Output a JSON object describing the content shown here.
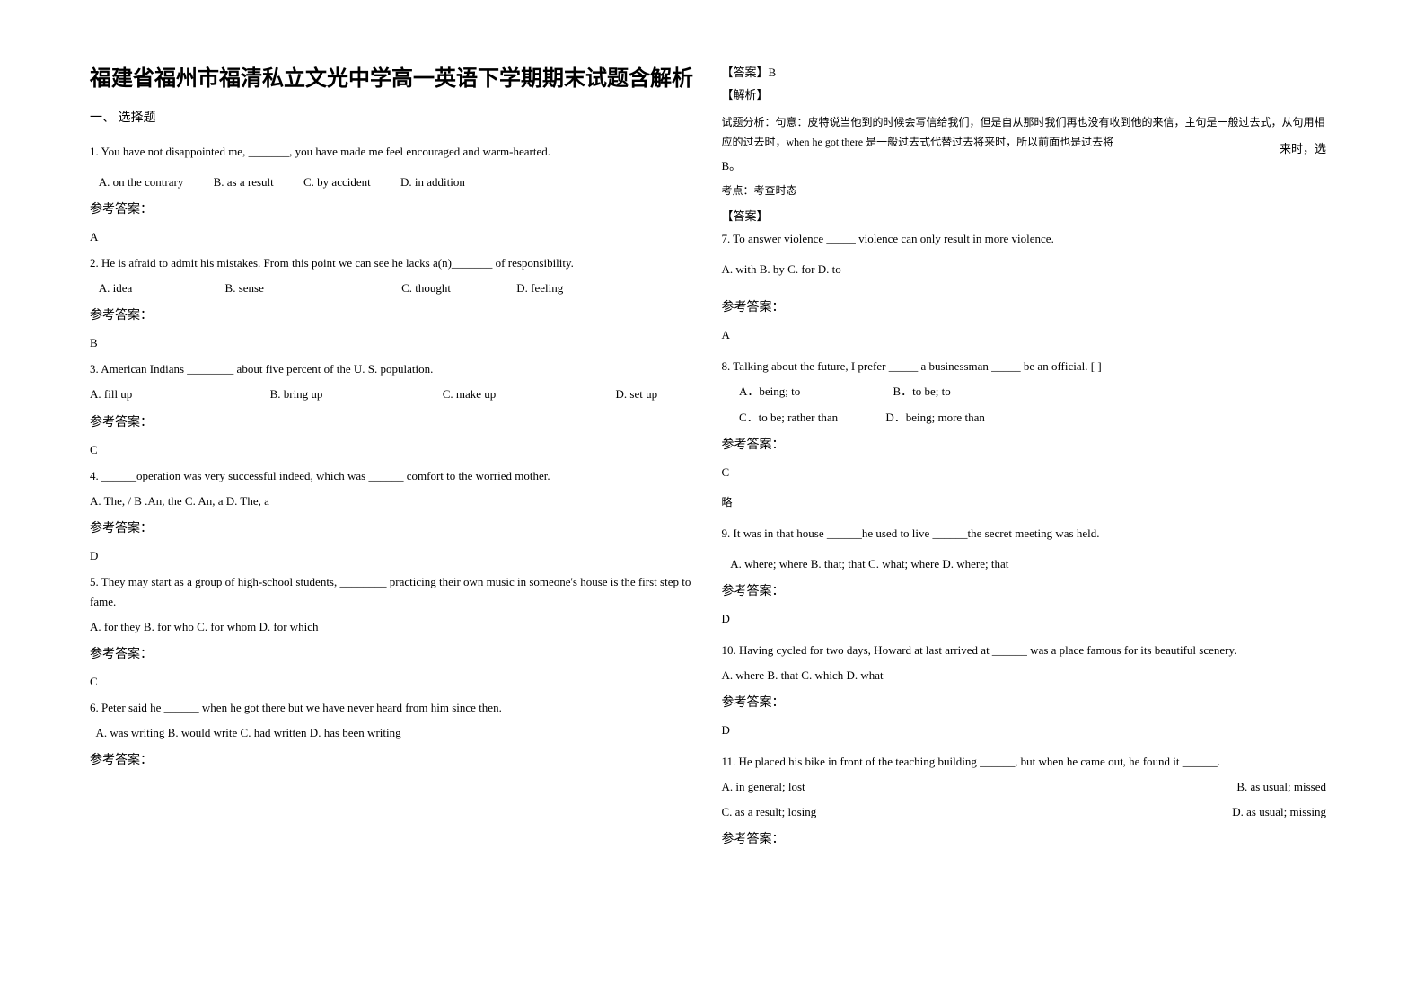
{
  "document": {
    "title": "福建省福州市福清私立文光中学高一英语下学期期末试题含解析",
    "section_header": "一、 选择题",
    "answer_label": "参考答案：",
    "analysis_label_bracket": "【解析】",
    "answer_label_bracket": "【答案】",
    "exam_point_label": "考点：",
    "brief_label": "略",
    "side_note": "来时，选"
  },
  "col1": {
    "q1": {
      "stem": "1. You have not disappointed me, _______, you have made me feel encouraged and warm-hearted.",
      "optA": "A. on the contrary",
      "optB": "B. as a result",
      "optC": "C. by accident",
      "optD": "D. in addition",
      "answer": "A"
    },
    "q2": {
      "stem": "2. He is afraid to admit his mistakes. From this point we can see he lacks a(n)_______ of responsibility.",
      "optA": "A. idea",
      "optB": "B. sense",
      "optC": "C. thought",
      "optD": "D. feeling",
      "answer": "B"
    },
    "q3": {
      "stem": "3. American Indians ________ about five percent of the U. S. population.",
      "optA": "A. fill up",
      "optB": "B. bring up",
      "optC": "C. make up",
      "optD": "D. set up",
      "answer": "C"
    },
    "q4": {
      "stem": "4. ______operation was very successful indeed, which was ______ comfort to the worried mother.",
      "options": "A. The, /    B .An, the    C. An, a     D. The, a",
      "answer": "D"
    },
    "q5": {
      "stem": "5. They may start as a group of high-school students, ________ practicing their own music in someone's house is the first step to fame.",
      "options": "A. for they    B. for who    C. for whom    D. for which",
      "answer": "C"
    },
    "q6": {
      "stem": "6. Peter said he ______ when he got there but we have never heard from him since then.",
      "options": "A. was writing   B. would write   C. had written   D. has been writing"
    }
  },
  "col2": {
    "q6_answer": "【答案】B",
    "q6_analysis": "试题分析：句意：皮特说当他到的时候会写信给我们，但是自从那时我们再也没有收到他的来信，主句是一般过去式，从句用相应的过去时，when he got there 是一般过去式代替过去将来时，所以前面也是过去将",
    "q6_answer_letter": "B。",
    "q6_exam_point": "考查时态",
    "q7": {
      "stem": "7. To answer violence _____ violence can only result in more violence.",
      "options": "A. with   B. by   C. for   D. to",
      "answer": "A"
    },
    "q8": {
      "stem": "8. Talking about the future, I prefer _____ a businessman _____ be an official.   [   ]",
      "optA": "A．being; to",
      "optB": "B．to be; to",
      "optC": "C．to be; rather than",
      "optD": "D．being; more than",
      "answer": "C"
    },
    "q9": {
      "stem": " 9. It was in that house ______he used to live ______the secret meeting was held.",
      "options": "A. where; where    B. that; that       C. what; where    D. where; that",
      "answer": "D"
    },
    "q10": {
      "stem": "10. Having cycled for two days, Howard at last arrived at ______ was a place famous for its beautiful scenery.",
      "options": "A. where        B. that         C. which          D. what",
      "answer": "D"
    },
    "q11": {
      "stem": "11. He placed his bike in front of the teaching building ______, but when he came out, he found it ______.",
      "optA": "A. in general; lost",
      "optB": "B. as usual; missed",
      "optC": "C. as a result; losing",
      "optD": "D. as usual; missing"
    }
  }
}
